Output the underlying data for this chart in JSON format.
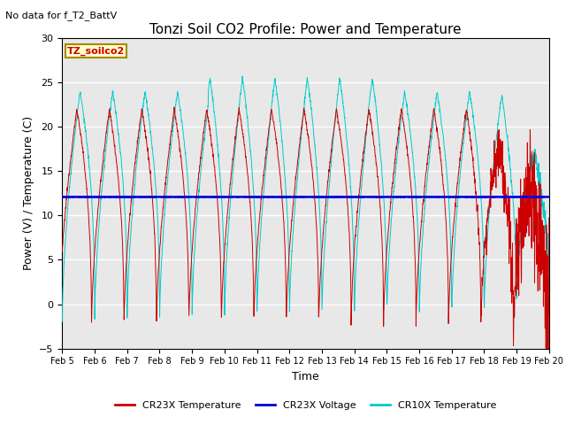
{
  "title": "Tonzi Soil CO2 Profile: Power and Temperature",
  "subtitle": "No data for f_T2_BattV",
  "xlabel": "Time",
  "ylabel": "Power (V) / Temperature (C)",
  "ylim": [
    -5,
    30
  ],
  "voltage_value": 12.1,
  "legend_labels": [
    "CR23X Temperature",
    "CR23X Voltage",
    "CR10X Temperature"
  ],
  "legend_colors": [
    "#cc0000",
    "#0000cc",
    "#00cccc"
  ],
  "xtick_labels": [
    "Feb 5",
    "Feb 6",
    "Feb 7",
    "Feb 8",
    "Feb 9",
    "Feb 10",
    "Feb 11",
    "Feb 12",
    "Feb 13",
    "Feb 14",
    "Feb 15",
    "Feb 16",
    "Feb 17",
    "Feb 18",
    "Feb 19",
    "Feb 20"
  ],
  "annotation_box_text": "TZ_soilco2",
  "bg_color": "#ffffff",
  "plot_bg_color": "#e8e8e8",
  "grid_color": "#ffffff",
  "title_fontsize": 11,
  "label_fontsize": 9
}
